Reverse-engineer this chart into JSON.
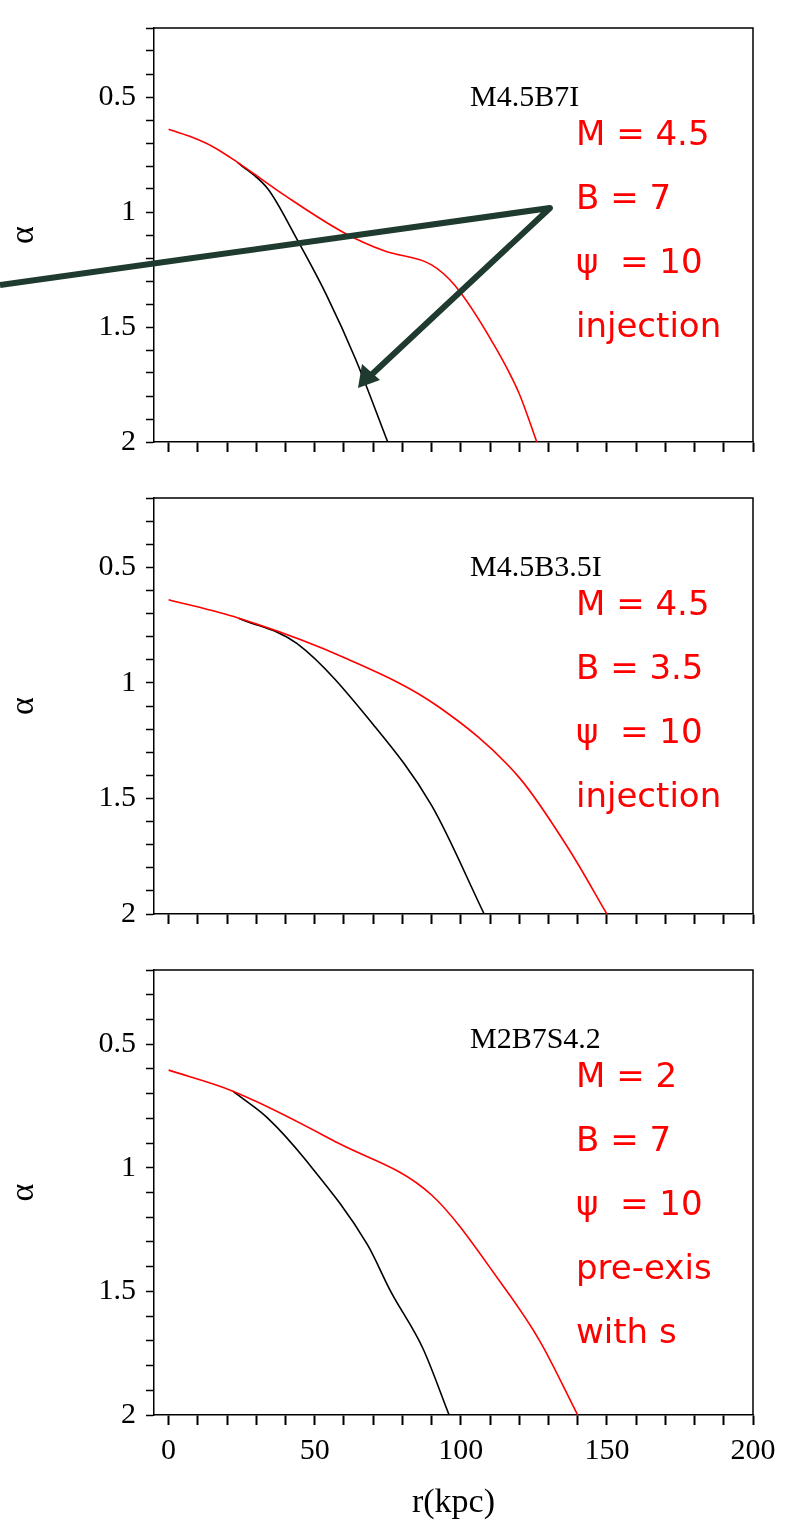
{
  "chart_data": [
    {
      "type": "line",
      "ylabel": "α",
      "xlim": [
        -5,
        200
      ],
      "ylim": [
        2,
        0.2
      ],
      "tick_labels": "y",
      "xticks": [
        0,
        {
          "value": 10,
          "label": null
        },
        {
          "value": 20,
          "label": null
        },
        {
          "value": 30,
          "label": null
        },
        {
          "value": 40,
          "label": null
        },
        50,
        {
          "value": 60,
          "label": null
        },
        {
          "value": 70,
          "label": null
        },
        {
          "value": 80,
          "label": null
        },
        {
          "value": 90,
          "label": null
        },
        100,
        {
          "value": 110,
          "label": null
        },
        {
          "value": 120,
          "label": null
        },
        {
          "value": 130,
          "label": null
        },
        {
          "value": 140,
          "label": null
        },
        150,
        {
          "value": 160,
          "label": null
        },
        {
          "value": 170,
          "label": null
        },
        {
          "value": 180,
          "label": null
        },
        {
          "value": 190,
          "label": null
        },
        200
      ],
      "yticks": [
        {
          "value": 0.2,
          "label": null
        },
        {
          "value": 0.3,
          "label": null
        },
        {
          "value": 0.4,
          "label": null
        },
        0.5,
        {
          "value": 0.6,
          "label": null
        },
        {
          "value": 0.7,
          "label": null
        },
        {
          "value": 0.8,
          "label": null
        },
        {
          "value": 0.9,
          "label": null
        },
        1,
        {
          "value": 1.1,
          "label": null
        },
        {
          "value": 1.2,
          "label": null
        },
        {
          "value": 1.3,
          "label": null
        },
        {
          "value": 1.4,
          "label": null
        },
        1.5,
        {
          "value": 1.6,
          "label": null
        },
        {
          "value": 1.7,
          "label": null
        },
        {
          "value": 1.8,
          "label": null
        },
        {
          "value": 1.9,
          "label": null
        },
        2
      ],
      "annotations": [
        "M4.5B7I",
        "M = 4.5",
        "B = 7",
        "ψ  = 10",
        "injection"
      ],
      "series": [
        {
          "color": "#ff0000",
          "x": [
            0,
            7,
            15,
            23.7,
            40,
            60,
            74,
            90,
            98,
            111,
            120,
            126
          ],
          "values": [
            0.64,
            0.67,
            0.715,
            0.785,
            0.93,
            1.09,
            1.17,
            1.23,
            1.32,
            1.57,
            1.79,
            2.0
          ]
        },
        {
          "color": "#000000",
          "x": [
            23.7,
            34,
            44,
            54,
            64,
            75
          ],
          "values": [
            0.785,
            0.9,
            1.12,
            1.36,
            1.64,
            2.0
          ]
        }
      ]
    },
    {
      "type": "line",
      "ylabel": "α",
      "xlim": [
        -5,
        200
      ],
      "ylim": [
        2,
        0.2
      ],
      "tick_labels": "y",
      "xticks": [
        0,
        {
          "value": 10,
          "label": null
        },
        {
          "value": 20,
          "label": null
        },
        {
          "value": 30,
          "label": null
        },
        {
          "value": 40,
          "label": null
        },
        50,
        {
          "value": 60,
          "label": null
        },
        {
          "value": 70,
          "label": null
        },
        {
          "value": 80,
          "label": null
        },
        {
          "value": 90,
          "label": null
        },
        100,
        {
          "value": 110,
          "label": null
        },
        {
          "value": 120,
          "label": null
        },
        {
          "value": 130,
          "label": null
        },
        {
          "value": 140,
          "label": null
        },
        150,
        {
          "value": 160,
          "label": null
        },
        {
          "value": 170,
          "label": null
        },
        {
          "value": 180,
          "label": null
        },
        {
          "value": 190,
          "label": null
        },
        200
      ],
      "yticks": [
        {
          "value": 0.2,
          "label": null
        },
        {
          "value": 0.3,
          "label": null
        },
        {
          "value": 0.4,
          "label": null
        },
        0.5,
        {
          "value": 0.6,
          "label": null
        },
        {
          "value": 0.7,
          "label": null
        },
        {
          "value": 0.8,
          "label": null
        },
        {
          "value": 0.9,
          "label": null
        },
        1,
        {
          "value": 1.1,
          "label": null
        },
        {
          "value": 1.2,
          "label": null
        },
        {
          "value": 1.3,
          "label": null
        },
        {
          "value": 1.4,
          "label": null
        },
        1.5,
        {
          "value": 1.6,
          "label": null
        },
        {
          "value": 1.7,
          "label": null
        },
        {
          "value": 1.8,
          "label": null
        },
        {
          "value": 1.9,
          "label": null
        },
        2
      ],
      "annotations": [
        "M4.5B3.5I",
        "M = 4.5",
        "B = 3.5",
        "ψ  = 10",
        "injection"
      ],
      "series": [
        {
          "color": "#ff0000",
          "x": [
            0,
            24,
            60,
            92,
            120,
            137,
            150
          ],
          "values": [
            0.64,
            0.72,
            0.89,
            1.1,
            1.41,
            1.72,
            2.0
          ]
        },
        {
          "color": "#000000",
          "x": [
            24,
            44,
            70,
            90,
            108
          ],
          "values": [
            0.72,
            0.83,
            1.18,
            1.53,
            2.0
          ]
        }
      ]
    },
    {
      "type": "line",
      "ylabel": "α",
      "xlabel": "r(kpc)",
      "xlim": [
        -5,
        200
      ],
      "ylim": [
        2,
        0.2
      ],
      "xticks": [
        0,
        {
          "value": 10,
          "label": null
        },
        {
          "value": 20,
          "label": null
        },
        {
          "value": 30,
          "label": null
        },
        {
          "value": 40,
          "label": null
        },
        50,
        {
          "value": 60,
          "label": null
        },
        {
          "value": 70,
          "label": null
        },
        {
          "value": 80,
          "label": null
        },
        {
          "value": 90,
          "label": null
        },
        100,
        {
          "value": 110,
          "label": null
        },
        {
          "value": 120,
          "label": null
        },
        {
          "value": 130,
          "label": null
        },
        {
          "value": 140,
          "label": null
        },
        150,
        {
          "value": 160,
          "label": null
        },
        {
          "value": 170,
          "label": null
        },
        {
          "value": 180,
          "label": null
        },
        {
          "value": 190,
          "label": null
        },
        200
      ],
      "yticks": [
        {
          "value": 0.2,
          "label": null
        },
        {
          "value": 0.3,
          "label": null
        },
        {
          "value": 0.4,
          "label": null
        },
        0.5,
        {
          "value": 0.6,
          "label": null
        },
        {
          "value": 0.7,
          "label": null
        },
        {
          "value": 0.8,
          "label": null
        },
        {
          "value": 0.9,
          "label": null
        },
        1,
        {
          "value": 1.1,
          "label": null
        },
        {
          "value": 1.2,
          "label": null
        },
        {
          "value": 1.3,
          "label": null
        },
        {
          "value": 1.4,
          "label": null
        },
        1.5,
        {
          "value": 1.6,
          "label": null
        },
        {
          "value": 1.7,
          "label": null
        },
        {
          "value": 1.8,
          "label": null
        },
        {
          "value": 1.9,
          "label": null
        },
        2
      ],
      "annotations": [
        "M2B7S4.2",
        "M = 2",
        "B = 7",
        "ψ  = 10",
        "pre-exis",
        "with s"
      ],
      "series": [
        {
          "color": "#ff0000",
          "x": [
            0,
            22,
            58,
            90,
            114,
            127,
            140
          ],
          "values": [
            0.605,
            0.69,
            0.9,
            1.11,
            1.47,
            1.7,
            2.0
          ]
        },
        {
          "color": "#000000",
          "x": [
            22,
            34,
            47,
            68,
            76,
            87,
            96
          ],
          "values": [
            0.69,
            0.8,
            0.97,
            1.31,
            1.5,
            1.73,
            2.0
          ]
        }
      ]
    }
  ]
}
